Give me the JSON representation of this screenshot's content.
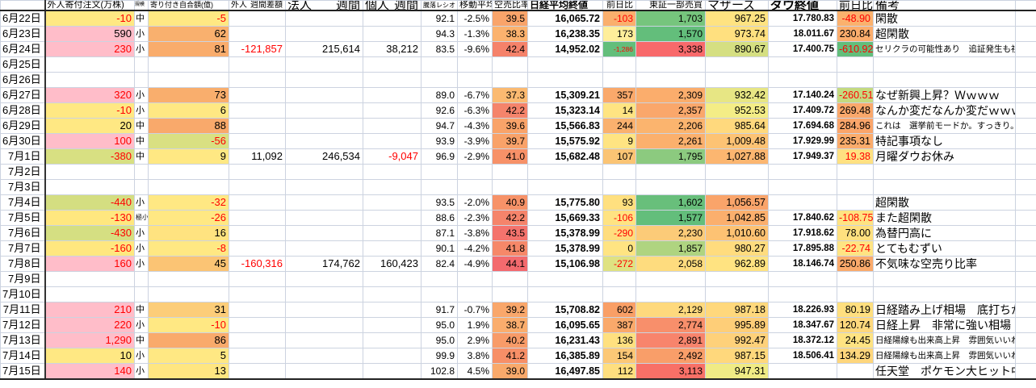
{
  "colors": {
    "header_accent": "#ff5c77",
    "negative_text": "#ff0000",
    "gridline": "#ccd3e0",
    "pink_high": "#ffbdc9",
    "yellow_mid": "#ffe883",
    "green_low": "#63be7b"
  },
  "sheet": {
    "columns": [
      "date",
      "foreign",
      "size",
      "open_amt",
      "f_week",
      "c_week",
      "i_week",
      "ratio",
      "ma",
      "short",
      "nikkei",
      "n_chg",
      "tse",
      "mothers",
      "dow",
      "d_chg",
      "note",
      "pad"
    ],
    "headers": {
      "date": "",
      "foreign": "外人寄付注文(万株)",
      "size": "規模",
      "open_amt": "寄り付き自合額(億)",
      "f_week_a": "外人",
      "f_week_b": "週間差額",
      "c_week_a": "法人",
      "c_week_b": "週間",
      "i_week_a": "個人",
      "i_week_b": "週間",
      "ratio": "騰落レシオ",
      "ma": "移動平均",
      "short": "空売比率",
      "nikkei": "日経平均終値",
      "n_chg": "前日比",
      "tse": "東証一部売買",
      "mothers": "マザーズ",
      "dow": "ダウ終値",
      "d_chg": "前日比",
      "note": "備考"
    },
    "rows": [
      {
        "date": "6月22日",
        "foreign": {
          "t": "-10",
          "bg": "#ffe883",
          "fg": "#ff0000"
        },
        "size": "中",
        "open_amt": {
          "t": "-5",
          "bg": "#ffe883",
          "fg": "#ff0000"
        },
        "ratio": "92.1",
        "ma": "-2.5%",
        "short": {
          "t": "39.5",
          "bg": "#f9a46a"
        },
        "nikkei": "16,065.72",
        "n_chg": {
          "t": "-103",
          "bg": "#faaf6d",
          "fg": "#ff0000"
        },
        "tse": {
          "t": "1,703",
          "bg": "#76c57d"
        },
        "mothers": {
          "t": "967.25",
          "bg": "#ffe381"
        },
        "dow": "17.780.83",
        "d_chg": {
          "t": "-48.90",
          "bg": "#fbb16d",
          "fg": "#ff0000"
        },
        "note": {
          "t": "閑散"
        }
      },
      {
        "date": "6月23日",
        "foreign": {
          "t": "590",
          "bg": "#ffbdc9"
        },
        "size": "小",
        "open_amt": {
          "t": "62",
          "bg": "#f9b06e"
        },
        "ratio": "94.3",
        "ma": "-1.3%",
        "short": {
          "t": "38.3",
          "bg": "#fbb26e"
        },
        "nikkei": "16,238.35",
        "n_chg": {
          "t": "173",
          "bg": "#ffee9b"
        },
        "tse": {
          "t": "1,570",
          "bg": "#63be7b"
        },
        "mothers": {
          "t": "973.74",
          "bg": "#ffe07f"
        },
        "dow": "18.011.67",
        "d_chg": {
          "t": "230.84",
          "bg": "#fbad6c"
        },
        "note": {
          "t": "超閑散"
        }
      },
      {
        "date": "6月24日",
        "foreign": {
          "t": "230",
          "bg": "#ffbdc9",
          "fg": "#ff0000"
        },
        "size": "小",
        "open_amt": {
          "t": "81",
          "bg": "#f9ac6c"
        },
        "f_week": {
          "t": "-121,857",
          "fg": "#ff0000"
        },
        "c_week": "215,614",
        "i_week": "38,212",
        "ratio": "83.5",
        "ma": "-9.6%",
        "short": {
          "t": "42.4",
          "bg": "#f5826a"
        },
        "nikkei": "14,952.02",
        "n_chg": {
          "t": "-1,286",
          "bg": "#63be7b",
          "fg": "#ff0000",
          "s": true
        },
        "tse": {
          "t": "3,338",
          "bg": "#f8696b"
        },
        "mothers": {
          "t": "890.67",
          "bg": "#d5df82"
        },
        "dow": "17.400.75",
        "d_chg": {
          "t": "-610.92",
          "bg": "#63be7b",
          "fg": "#ff0000"
        },
        "note": {
          "t": "セリクラの可能性あり　追証発生も視野",
          "s": true
        }
      },
      {
        "date": "6月25日"
      },
      {
        "date": "6月26日"
      },
      {
        "date": "6月27日",
        "foreign": {
          "t": "320",
          "bg": "#ffbdc9",
          "fg": "#ff0000"
        },
        "size": "小",
        "open_amt": {
          "t": "73",
          "bg": "#f9ae6d"
        },
        "ratio": "89.0",
        "ma": "-6.7%",
        "short": {
          "t": "37.3",
          "bg": "#fbba71"
        },
        "nikkei": "15,309.21",
        "n_chg": {
          "t": "357",
          "bg": "#faa96b"
        },
        "tse": {
          "t": "2,309",
          "bg": "#fbad6c"
        },
        "mothers": {
          "t": "932.42",
          "bg": "#e7e684"
        },
        "dow": "17.140.24",
        "d_chg": {
          "t": "-260.51",
          "bg": "#c4da80",
          "fg": "#ff0000"
        },
        "note": {
          "t": "なぜ新興上昇？Ｗｗｗｗ"
        }
      },
      {
        "date": "6月28日",
        "foreign": {
          "t": "-10",
          "bg": "#ffe883",
          "fg": "#ff0000"
        },
        "size": "小",
        "open_amt": {
          "t": "6",
          "bg": "#ffe883"
        },
        "ratio": "92.6",
        "ma": "-6.3%",
        "short": {
          "t": "42.2",
          "bg": "#f5846b"
        },
        "nikkei": "15,323.14",
        "n_chg": {
          "t": "14",
          "bg": "#ffe482"
        },
        "tse": {
          "t": "2,357",
          "bg": "#faa76b"
        },
        "mothers": {
          "t": "952.53",
          "bg": "#f4ed86"
        },
        "dow": "17.409.72",
        "d_chg": {
          "t": "269.48",
          "bg": "#faa86b"
        },
        "note": {
          "t": "なんか変だなんか変だｗｗｗｗ"
        }
      },
      {
        "date": "6月29日",
        "foreign": {
          "t": "20",
          "bg": "#ffe883"
        },
        "size": "中",
        "open_amt": {
          "t": "88",
          "bg": "#f9a96b"
        },
        "ratio": "94.7",
        "ma": "-4.3%",
        "short": {
          "t": "39.6",
          "bg": "#f9a369"
        },
        "nikkei": "15,566.83",
        "n_chg": {
          "t": "244",
          "bg": "#fab16e"
        },
        "tse": {
          "t": "2,206",
          "bg": "#fbb46e"
        },
        "mothers": {
          "t": "985.64",
          "bg": "#ffd97d"
        },
        "dow": "17.694.68",
        "d_chg": {
          "t": "284.96",
          "bg": "#faa56a"
        },
        "note": {
          "t": "これは　選挙前モードか。すっきり。",
          "s": true
        }
      },
      {
        "date": "6月30日",
        "foreign": {
          "t": "100",
          "bg": "#ffbdc9",
          "fg": "#ff0000"
        },
        "size": "中",
        "open_amt": {
          "t": "-56",
          "bg": "#d9e082",
          "fg": "#ff0000"
        },
        "ratio": "93.9",
        "ma": "-3.9%",
        "short": {
          "t": "39.7",
          "bg": "#f9a269"
        },
        "nikkei": "15,575.92",
        "n_chg": {
          "t": "9",
          "bg": "#ffe482"
        },
        "tse": {
          "t": "2,261",
          "bg": "#fbb06d"
        },
        "mothers": {
          "t": "1,009.48",
          "bg": "#fdc374"
        },
        "dow": "17.929.99",
        "d_chg": {
          "t": "235.31",
          "bg": "#fbac6c"
        },
        "note": {
          "t": "特記事項なし"
        }
      },
      {
        "date": "7月1日",
        "foreign": {
          "t": "-380",
          "bg": "#d8e082",
          "fg": "#ff0000"
        },
        "size": "中",
        "open_amt": {
          "t": "9",
          "bg": "#ffe883"
        },
        "f_week": "11,092",
        "c_week": "246,534",
        "i_week": {
          "t": "-9,047",
          "fg": "#ff0000"
        },
        "ratio": "96.9",
        "ma": "-2.9%",
        "short": {
          "t": "41.0",
          "bg": "#f79168"
        },
        "nikkei": "15,682.48",
        "n_chg": {
          "t": "107",
          "bg": "#fbc474"
        },
        "tse": {
          "t": "1,795",
          "bg": "#8cca7f"
        },
        "mothers": {
          "t": "1,027.88",
          "bg": "#fcb670"
        },
        "dow": "17.949.37",
        "d_chg": {
          "t": "19.38",
          "bg": "#ffe181",
          "fg": "#ff0000"
        },
        "note": {
          "t": "月曜ダウお休み"
        }
      },
      {
        "date": "7月2日"
      },
      {
        "date": "7月3日"
      },
      {
        "date": "7月4日",
        "foreign": {
          "t": "-440",
          "bg": "#d4de81",
          "fg": "#ff0000"
        },
        "size": "小",
        "open_amt": {
          "t": "-32",
          "bg": "#ffe883",
          "fg": "#ff0000"
        },
        "ratio": "93.5",
        "ma": "-2.0%",
        "short": {
          "t": "40.9",
          "bg": "#f79268"
        },
        "nikkei": "15,775.80",
        "n_chg": {
          "t": "93",
          "bg": "#ffe07f"
        },
        "tse": {
          "t": "1,602",
          "bg": "#68bf7b"
        },
        "mothers": {
          "t": "1,056.57",
          "bg": "#faa46a"
        },
        "note": {
          "t": "超閑散"
        }
      },
      {
        "date": "7月5日",
        "foreign": {
          "t": "-130",
          "bg": "#ffe77f",
          "fg": "#ff0000"
        },
        "size": {
          "t": "極小",
          "s": true
        },
        "open_amt": {
          "t": "-26",
          "bg": "#ffe883",
          "fg": "#ff0000"
        },
        "ratio": "88.6",
        "ma": "-2.3%",
        "short": {
          "t": "42.2",
          "bg": "#f5846b"
        },
        "nikkei": "15,669.33",
        "n_chg": {
          "t": "-106",
          "bg": "#ffe382",
          "fg": "#ff0000"
        },
        "tse": {
          "t": "1,577",
          "bg": "#63be7b"
        },
        "mothers": {
          "t": "1,042.85",
          "bg": "#fbaf6d"
        },
        "dow": "17.840.62",
        "d_chg": {
          "t": "-108.75",
          "bg": "#ffe382",
          "fg": "#ff0000"
        },
        "note": {
          "t": "また超閑散"
        }
      },
      {
        "date": "7月6日",
        "foreign": {
          "t": "-430",
          "bg": "#d5df82",
          "fg": "#ff0000"
        },
        "size": "小",
        "open_amt": {
          "t": "16",
          "bg": "#ffe380"
        },
        "ratio": "87.1",
        "ma": "-3.8%",
        "short": {
          "t": "43.5",
          "bg": "#f4736d"
        },
        "nikkei": "15,378.99",
        "n_chg": {
          "t": "-290",
          "bg": "#ffdd7e",
          "fg": "#ff0000"
        },
        "tse": {
          "t": "2,230",
          "bg": "#fccb78"
        },
        "mothers": {
          "t": "1,010.60",
          "bg": "#fdc273"
        },
        "dow": "17.918.62",
        "d_chg": {
          "t": "78.00",
          "bg": "#ffe07f"
        },
        "note": {
          "t": "為替円高に"
        }
      },
      {
        "date": "7月7日",
        "foreign": {
          "t": "-160",
          "bg": "#ffe77f",
          "fg": "#ff0000"
        },
        "size": "小",
        "open_amt": {
          "t": "-8",
          "bg": "#ffe883",
          "fg": "#ff0000"
        },
        "ratio": "90.1",
        "ma": "-4.2%",
        "short": {
          "t": "41.8",
          "bg": "#f68869"
        },
        "nikkei": "15,378.99",
        "n_chg": {
          "t": "0",
          "bg": "#ffe482"
        },
        "tse": {
          "t": "1,857",
          "bg": "#afd480"
        },
        "mothers": {
          "t": "980.27",
          "bg": "#ffdc7e"
        },
        "dow": "17.895.88",
        "d_chg": {
          "t": "-22.74",
          "bg": "#ffe483",
          "fg": "#ff0000"
        },
        "note": {
          "t": "とてもむずい"
        }
      },
      {
        "date": "7月8日",
        "foreign": {
          "t": "160",
          "bg": "#ffbdc9",
          "fg": "#ff0000"
        },
        "size": "小",
        "open_amt": {
          "t": "45",
          "bg": "#fbc474"
        },
        "f_week": {
          "t": "-160,316",
          "fg": "#ff0000"
        },
        "c_week": "174,762",
        "i_week": "160,423",
        "ratio": "82.4",
        "ma": "-4.9%",
        "short": {
          "t": "44.1",
          "bg": "#f36a6e"
        },
        "nikkei": "15,106.98",
        "n_chg": {
          "t": "-272",
          "bg": "#dfe282",
          "fg": "#ff0000"
        },
        "tse": {
          "t": "2,058",
          "bg": "#fedc7e"
        },
        "mothers": {
          "t": "962.89",
          "bg": "#ffe381"
        },
        "dow": "18.146.74",
        "d_chg": {
          "t": "250.86",
          "bg": "#faaa6b"
        },
        "note": {
          "t": "不気味な空売り比率"
        }
      },
      {
        "date": "7月9日"
      },
      {
        "date": "7月10日"
      },
      {
        "date": "7月11日",
        "foreign": {
          "t": "210",
          "bg": "#ffbdc9",
          "fg": "#ff0000"
        },
        "size": "中",
        "open_amt": {
          "t": "31",
          "bg": "#fccd79"
        },
        "ratio": "91.7",
        "ma": "-0.7%",
        "short": {
          "t": "39.2",
          "bg": "#f9a76b"
        },
        "nikkei": "15,708.82",
        "n_chg": {
          "t": "602",
          "bg": "#f99f66"
        },
        "tse": {
          "t": "2,129",
          "bg": "#fed97d"
        },
        "mothers": {
          "t": "987.18",
          "bg": "#ffd87c"
        },
        "dow": "18.226.93",
        "d_chg": {
          "t": "80.19",
          "bg": "#ffdf7f"
        },
        "note": {
          "t": "日経踏み上げ相場　底打ちか"
        }
      },
      {
        "date": "7月12日",
        "foreign": {
          "t": "220",
          "bg": "#ffbdc9",
          "fg": "#ff0000"
        },
        "size": "小",
        "open_amt": {
          "t": "-10",
          "bg": "#ffe883",
          "fg": "#ff0000"
        },
        "ratio": "95.0",
        "ma": "1.9%",
        "short": {
          "t": "38.7",
          "bg": "#faad6d"
        },
        "nikkei": "16,095.65",
        "n_chg": {
          "t": "387",
          "bg": "#faa96b"
        },
        "tse": {
          "t": "2,774",
          "bg": "#f88f6b"
        },
        "mothers": {
          "t": "995.89",
          "bg": "#fece78"
        },
        "dow": "18.347.67",
        "d_chg": {
          "t": "120.74",
          "bg": "#fed87d"
        },
        "note": {
          "t": "日経上昇　非常に強い相場"
        }
      },
      {
        "date": "7月13日",
        "foreign": {
          "t": "1,290",
          "bg": "#ffbdc9",
          "fg": "#ff0000"
        },
        "size": "中",
        "open_amt": {
          "t": "86",
          "bg": "#f9aa6b"
        },
        "ratio": "95.0",
        "ma": "2.9%",
        "short": {
          "t": "40.2",
          "bg": "#f89b68"
        },
        "nikkei": "16,231.43",
        "n_chg": {
          "t": "136",
          "bg": "#ffe07f"
        },
        "tse": {
          "t": "2,891",
          "bg": "#f8846c"
        },
        "mothers": {
          "t": "992.47",
          "bg": "#fed17a"
        },
        "dow": "18.372.12",
        "d_chg": {
          "t": "24.45",
          "bg": "#ffe382"
        },
        "note": {
          "t": "日経陽線も出来高上昇　雰囲気いいね",
          "s": true
        }
      },
      {
        "date": "7月14日",
        "foreign": {
          "t": "10",
          "bg": "#ffe883"
        },
        "size": "小",
        "open_amt": {
          "t": "5",
          "bg": "#ffe883"
        },
        "ratio": "99.9",
        "ma": "3.8%",
        "short": {
          "t": "41.2",
          "bg": "#f78f67"
        },
        "nikkei": "16,385.89",
        "n_chg": {
          "t": "154",
          "bg": "#fcc876"
        },
        "tse": {
          "t": "2,492",
          "bg": "#f99e69"
        },
        "mothers": {
          "t": "987.15",
          "bg": "#ffd87c"
        },
        "dow": "18.506.41",
        "d_chg": {
          "t": "134.29",
          "bg": "#fed67c"
        },
        "note": {
          "t": "日経陽線も出来高上昇　雰囲気いいね",
          "s": true
        }
      },
      {
        "date": "7月15日",
        "foreign": {
          "t": "140",
          "bg": "#ffbdc9",
          "fg": "#ff0000"
        },
        "size": "小",
        "open_amt": {
          "t": "13",
          "bg": "#ffe681"
        },
        "ratio": "102.8",
        "ma": "4.5%",
        "short": {
          "t": "39.0",
          "bg": "#f9a96b"
        },
        "nikkei": "16,497.85",
        "n_chg": {
          "t": "112",
          "bg": "#ffdf7f"
        },
        "tse": {
          "t": "3,113",
          "bg": "#f87067"
        },
        "mothers": {
          "t": "947.31",
          "bg": "#f0eb85"
        },
        "note": {
          "t": "任天堂　ポケモン大ヒット中"
        }
      }
    ]
  }
}
